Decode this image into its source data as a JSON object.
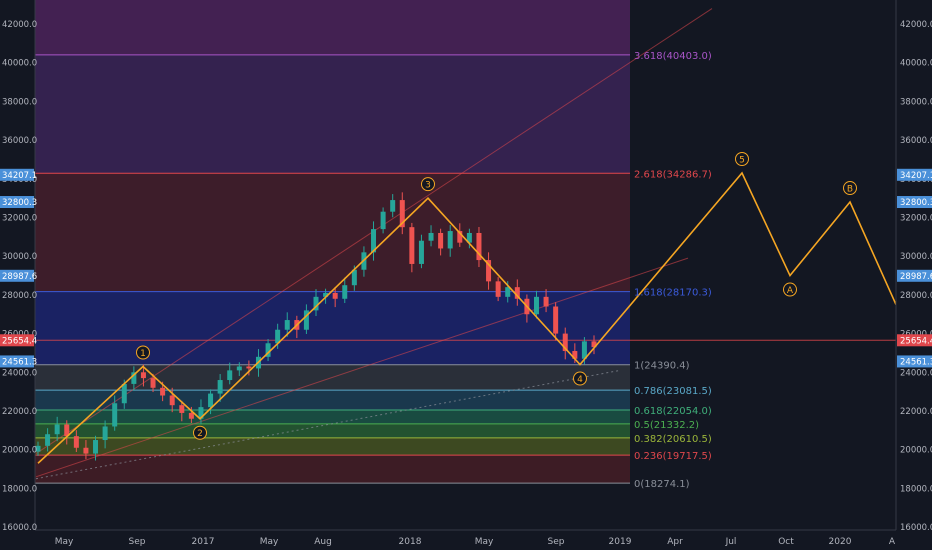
{
  "chart_data": {
    "type": "candlestick",
    "title": "",
    "xlabel": "",
    "ylabel": "",
    "x_tick_labels": [
      "May",
      "Sep",
      "2017",
      "May",
      "Aug",
      "2018",
      "May",
      "Sep",
      "2019",
      "Apr",
      "Jul",
      "Oct",
      "2020",
      "A"
    ],
    "y_tick_labels": [
      "16000.0",
      "18000.0",
      "20000.0",
      "22000.0",
      "24000.0",
      "26000.0",
      "28000.0",
      "30000.0",
      "32000.0",
      "34000.0",
      "36000.0",
      "38000.0",
      "40000.0",
      "42000.0"
    ],
    "ylim": [
      15900,
      43300
    ],
    "grid": false,
    "price_badges": [
      {
        "label": "34207.1",
        "value": 34207.1,
        "color": "#4a90d9"
      },
      {
        "label": "32800.3",
        "value": 32800.3,
        "color": "#4a90d9"
      },
      {
        "label": "28987.6",
        "value": 28987.6,
        "color": "#4a90d9"
      },
      {
        "label": "25654.4",
        "value": 25654.4,
        "color": "#e0474c"
      },
      {
        "label": "24561.3",
        "value": 24561.3,
        "color": "#4a90d9"
      }
    ],
    "fib_levels": [
      {
        "label": "3.618(40403.0)",
        "value": 40403.0,
        "color": "#a855c8"
      },
      {
        "label": "2.618(34286.7)",
        "value": 34286.7,
        "color": "#e0474c"
      },
      {
        "label": "1.618(28170.3)",
        "value": 28170.3,
        "color": "#3b5bdb"
      },
      {
        "label": "1(24390.4)",
        "value": 24390.4,
        "color": "#8a8f99"
      },
      {
        "label": "0.786(23081.5)",
        "value": 23081.5,
        "color": "#5aa8c8"
      },
      {
        "label": "0.618(22054.0)",
        "value": 22054.0,
        "color": "#3fae7a"
      },
      {
        "label": "0.5(21332.2)",
        "value": 21332.2,
        "color": "#4caf50"
      },
      {
        "label": "0.382(20610.5)",
        "value": 20610.5,
        "color": "#9bb53a"
      },
      {
        "label": "0.236(19717.5)",
        "value": 19717.5,
        "color": "#e0474c"
      },
      {
        "label": "0(18274.1)",
        "value": 18274.1,
        "color": "#8a8f99"
      }
    ],
    "wave_labels": [
      {
        "label": "1",
        "value": 24300
      },
      {
        "label": "2",
        "value": 21600
      },
      {
        "label": "3",
        "value": 33000
      },
      {
        "label": "4",
        "value": 24400
      },
      {
        "label": "5",
        "value": 34300
      },
      {
        "label": "A",
        "value": 29000
      },
      {
        "label": "B",
        "value": 32800
      }
    ],
    "wave_path_values": [
      19300,
      24300,
      21600,
      33000,
      24400,
      34300,
      29000,
      32800,
      27500
    ],
    "price_series": [
      20200,
      20800,
      21300,
      20700,
      20100,
      19800,
      20500,
      21200,
      22400,
      23400,
      24000,
      23700,
      23200,
      22800,
      22300,
      21900,
      21600,
      22200,
      22900,
      23600,
      24100,
      24300,
      24200,
      24800,
      25500,
      26200,
      26700,
      26200,
      27200,
      27900,
      28100,
      27800,
      28500,
      29300,
      30200,
      31400,
      32300,
      32900,
      31500,
      29600,
      30800,
      31200,
      30400,
      31300,
      30700,
      31200,
      29800,
      28700,
      27900,
      28400,
      27800,
      27000,
      27900,
      27400,
      26000,
      25100,
      24700,
      25600,
      25300
    ]
  },
  "colors": {
    "background": "#131722",
    "up": "#26a69a",
    "down": "#ef5350",
    "wave": "#f5a623",
    "axis_text": "#b2b5be"
  }
}
